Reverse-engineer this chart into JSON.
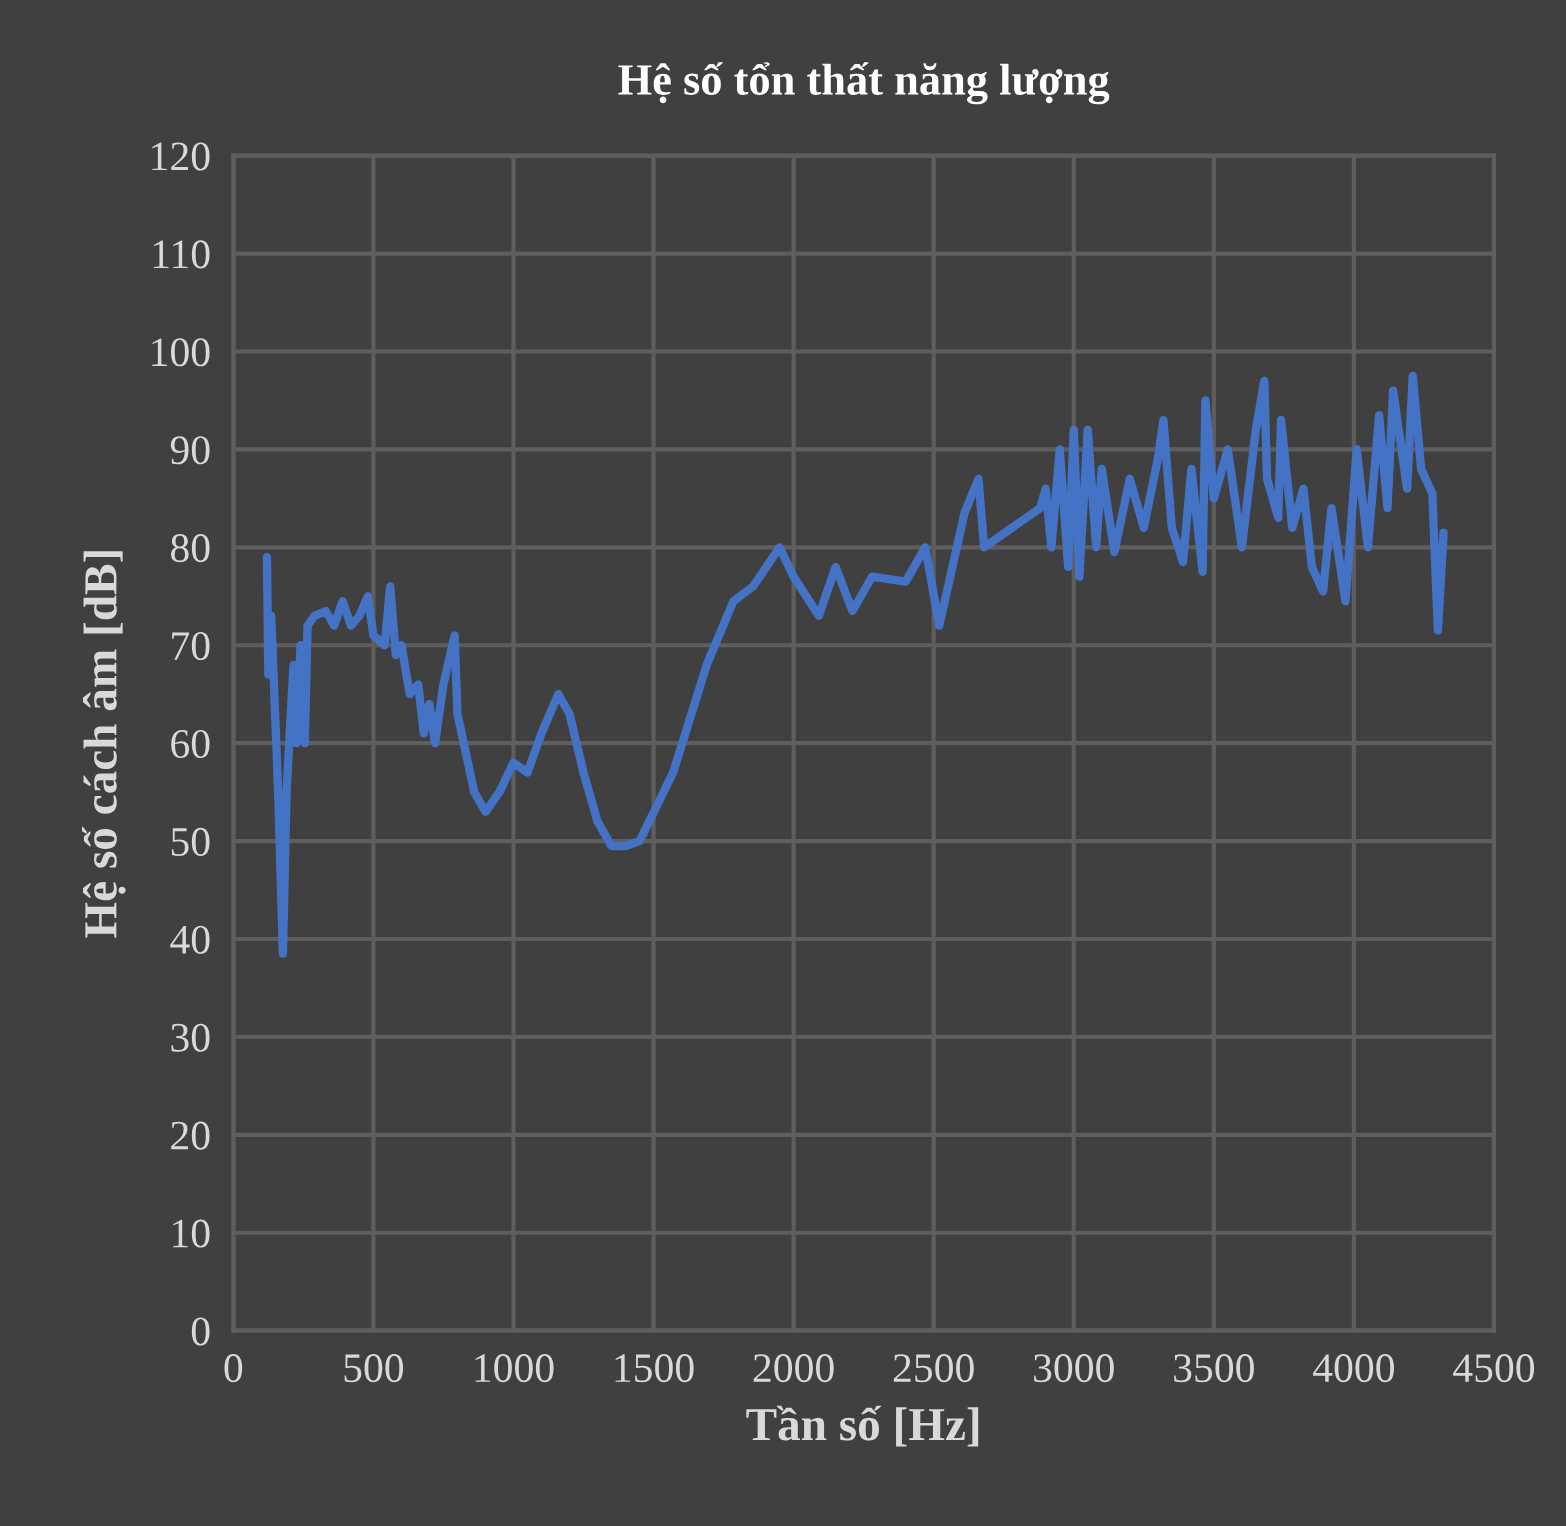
{
  "chart_data": {
    "type": "line",
    "title": "Hệ số tổn thất năng lượng",
    "xlabel": "Tần số [Hz]",
    "ylabel": "Hệ số cách âm [dB]",
    "xlim": [
      0,
      4500
    ],
    "xticks": [
      0,
      500,
      1000,
      1500,
      2000,
      2500,
      3000,
      3500,
      4000,
      4500
    ],
    "ylim": [
      0,
      120
    ],
    "yticks": [
      0,
      10,
      20,
      30,
      40,
      50,
      60,
      70,
      80,
      90,
      100,
      110,
      120
    ],
    "grid": true,
    "marker": "none",
    "line_style": "solid",
    "series": [
      {
        "color": "#4472c4",
        "x": [
          120,
          125,
          135,
          145,
          160,
          177,
          190,
          205,
          215,
          225,
          240,
          255,
          265,
          290,
          330,
          360,
          390,
          420,
          450,
          480,
          500,
          540,
          560,
          580,
          600,
          630,
          660,
          680,
          700,
          720,
          750,
          790,
          800,
          830,
          860,
          900,
          950,
          1000,
          1050,
          1100,
          1160,
          1200,
          1250,
          1300,
          1350,
          1400,
          1450,
          1570,
          1690,
          1785,
          1855,
          1950,
          2000,
          2090,
          2150,
          2210,
          2280,
          2400,
          2470,
          2520,
          2610,
          2660,
          2680,
          2780,
          2880,
          2900,
          2920,
          2950,
          2980,
          3000,
          3020,
          3050,
          3080,
          3100,
          3145,
          3200,
          3250,
          3300,
          3320,
          3350,
          3390,
          3420,
          3460,
          3470,
          3500,
          3550,
          3600,
          3650,
          3680,
          3690,
          3730,
          3740,
          3780,
          3820,
          3850,
          3890,
          3920,
          3970,
          4010,
          4050,
          4090,
          4120,
          4140,
          4190,
          4210,
          4240,
          4280,
          4300,
          4320
        ],
        "values": [
          79,
          67,
          73,
          66,
          55,
          38.5,
          55,
          63,
          68,
          60,
          70,
          60,
          72,
          73,
          73.5,
          72,
          74.5,
          72,
          73,
          75,
          71,
          70,
          76,
          69,
          70,
          65,
          66,
          61,
          64,
          60,
          66,
          71,
          63,
          59,
          55,
          53,
          55,
          58,
          57,
          61,
          65,
          63,
          57,
          52,
          49.5,
          49.5,
          50,
          57,
          68,
          74.5,
          76,
          80,
          77,
          73,
          78,
          73.5,
          77,
          76.5,
          80,
          72,
          83.5,
          87,
          80,
          82,
          84,
          86,
          80,
          90,
          78,
          92,
          77,
          92,
          80,
          88,
          79.5,
          87,
          82,
          89,
          93,
          82,
          78.5,
          88,
          77.5,
          95,
          85,
          90,
          80,
          92,
          97,
          87,
          83,
          93,
          82,
          86,
          78,
          75.5,
          84,
          74.5,
          90,
          80,
          93.5,
          84,
          96,
          86,
          97.5,
          88,
          85.5,
          71.5,
          81.5
        ]
      }
    ]
  }
}
